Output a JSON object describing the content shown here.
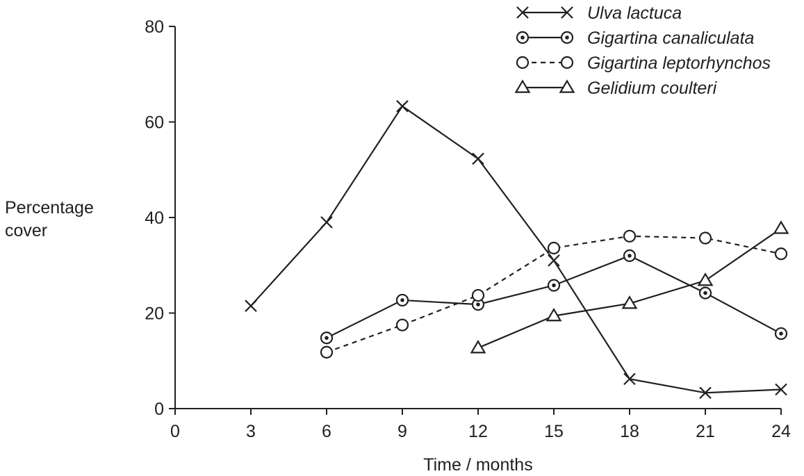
{
  "chart_data": {
    "type": "line",
    "xlabel": "Time / months",
    "ylabel": [
      "Percentage",
      "cover"
    ],
    "xlim": [
      0,
      24
    ],
    "ylim": [
      0,
      80
    ],
    "xticks": [
      0,
      3,
      6,
      9,
      12,
      15,
      18,
      21,
      24
    ],
    "yticks": [
      0,
      20,
      40,
      60,
      80
    ],
    "grid": false,
    "legend_position": "top-right",
    "series": [
      {
        "name": "Ulva lactuca",
        "marker": "cross",
        "line": "solid",
        "points": [
          [
            3,
            21.5
          ],
          [
            6,
            39
          ],
          [
            9,
            63.3
          ],
          [
            12,
            52.3
          ],
          [
            15,
            31
          ],
          [
            18,
            6.2
          ],
          [
            21,
            3.3
          ],
          [
            24,
            4
          ]
        ]
      },
      {
        "name": "Gigartina canaliculata",
        "marker": "dotted-circle",
        "line": "solid",
        "points": [
          [
            6,
            14.8
          ],
          [
            9,
            22.7
          ],
          [
            12,
            21.8
          ],
          [
            15,
            25.8
          ],
          [
            18,
            32
          ],
          [
            21,
            24.2
          ],
          [
            24,
            15.7
          ]
        ]
      },
      {
        "name": "Gigartina leptorhynchos",
        "marker": "open-circle",
        "line": "dashed",
        "points": [
          [
            6,
            11.8
          ],
          [
            9,
            17.5
          ],
          [
            12,
            23.7
          ],
          [
            15,
            33.6
          ],
          [
            18,
            36.1
          ],
          [
            21,
            35.7
          ],
          [
            24,
            32.4
          ]
        ]
      },
      {
        "name": "Gelidium coulteri",
        "marker": "triangle",
        "line": "solid",
        "points": [
          [
            12,
            12.7
          ],
          [
            15,
            19.4
          ],
          [
            18,
            22
          ],
          [
            21,
            26.8
          ],
          [
            24,
            37.7
          ]
        ]
      }
    ]
  }
}
